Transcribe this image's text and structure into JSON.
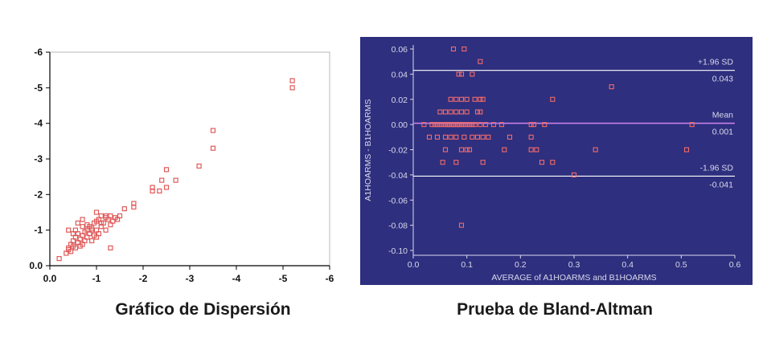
{
  "colors": {
    "left_marker": "#e05a5a",
    "left_axis": "#000000",
    "right_background": "#2e2f7e",
    "right_marker": "#f26a6a",
    "right_line": "#ffffff",
    "right_mean_line": "#c47fe8",
    "right_text": "#d8d8ec"
  },
  "captions": {
    "left": "Gráfico de Dispersión",
    "right": "Prueba de Bland-Altman"
  },
  "chart_data": [
    {
      "type": "scatter",
      "title": "",
      "xlabel": "",
      "ylabel": "",
      "xlim": [
        0,
        -6
      ],
      "ylim": [
        0,
        -6
      ],
      "grid": false,
      "x_ticks": [
        "0.0",
        "-1",
        "-2",
        "-3",
        "-4",
        "-5",
        "-6"
      ],
      "y_ticks": [
        "0.0",
        "-1",
        "-2",
        "-3",
        "-4",
        "-5",
        "-6"
      ],
      "x": [
        -0.2,
        -0.35,
        -0.4,
        -0.4,
        -0.45,
        -0.45,
        -0.5,
        -0.5,
        -0.55,
        -0.55,
        -0.6,
        -0.6,
        -0.6,
        -0.65,
        -0.65,
        -0.7,
        -0.7,
        -0.7,
        -0.75,
        -0.75,
        -0.8,
        -0.8,
        -0.85,
        -0.85,
        -0.9,
        -0.9,
        -0.95,
        -0.95,
        -1.0,
        -1.0,
        -1.0,
        -1.05,
        -1.05,
        -1.1,
        -1.1,
        -1.15,
        -1.2,
        -1.2,
        -1.25,
        -1.3,
        -1.3,
        -1.35,
        -1.4,
        -1.45,
        -1.5,
        -1.6,
        -1.8,
        -1.8,
        -2.2,
        -2.2,
        -2.35,
        -2.4,
        -2.5,
        -2.5,
        -2.7,
        -3.2,
        -3.5,
        -3.5,
        -5.2,
        -5.2,
        -0.4,
        -0.5,
        -0.55,
        -0.7,
        -0.8,
        -0.9,
        -1.0,
        -1.1,
        -1.2,
        -1.3
      ],
      "y": [
        -0.2,
        -0.35,
        -0.5,
        -1.0,
        -0.6,
        -0.4,
        -0.7,
        -0.55,
        -0.8,
        -0.5,
        -0.9,
        -0.65,
        -1.2,
        -0.75,
        -0.55,
        -0.6,
        -0.85,
        -1.1,
        -0.7,
        -0.95,
        -0.8,
        -1.0,
        -0.9,
        -1.1,
        -0.7,
        -1.0,
        -0.85,
        -1.2,
        -1.0,
        -0.8,
        -1.5,
        -0.9,
        -1.3,
        -1.1,
        -1.4,
        -1.2,
        -1.0,
        -1.35,
        -1.3,
        -0.5,
        -1.4,
        -1.25,
        -1.35,
        -1.3,
        -1.4,
        -1.6,
        -1.65,
        -1.75,
        -2.1,
        -2.2,
        -2.1,
        -2.4,
        -2.2,
        -2.7,
        -2.4,
        -2.8,
        -3.3,
        -3.8,
        -5.0,
        -5.2,
        -0.45,
        -0.9,
        -1.0,
        -1.3,
        -1.15,
        -1.05,
        -1.25,
        -1.2,
        -1.4,
        -1.15
      ]
    },
    {
      "type": "scatter",
      "title": "",
      "xlabel": "AVERAGE of A1HOARMS and B1HOARMS",
      "ylabel": "A1HOARMS - B1HOARMS",
      "xlim": [
        0.0,
        0.6
      ],
      "ylim": [
        -0.1,
        0.06
      ],
      "grid": false,
      "x_ticks": [
        "0.0",
        "0.1",
        "0.2",
        "0.3",
        "0.4",
        "0.5",
        "0.6"
      ],
      "y_ticks": [
        "0.06",
        "0.04",
        "0.02",
        "0.00",
        "-0.02",
        "-0.04",
        "-0.06",
        "-0.08",
        "-0.10"
      ],
      "reference_lines": [
        {
          "label": "+1.96 SD",
          "value_label": "0.043",
          "y": 0.043
        },
        {
          "label": "Mean",
          "value_label": "0.001",
          "y": 0.001
        },
        {
          "label": "-1.96 SD",
          "value_label": "-0.041",
          "y": -0.041
        }
      ],
      "x": [
        0.075,
        0.095,
        0.085,
        0.09,
        0.11,
        0.125,
        0.07,
        0.08,
        0.09,
        0.1,
        0.115,
        0.125,
        0.13,
        0.26,
        0.37,
        0.05,
        0.06,
        0.07,
        0.08,
        0.09,
        0.1,
        0.12,
        0.125,
        0.04,
        0.05,
        0.06,
        0.065,
        0.07,
        0.075,
        0.08,
        0.085,
        0.09,
        0.1,
        0.11,
        0.02,
        0.035,
        0.045,
        0.055,
        0.065,
        0.075,
        0.085,
        0.095,
        0.105,
        0.115,
        0.125,
        0.135,
        0.15,
        0.165,
        0.22,
        0.225,
        0.245,
        0.52,
        0.03,
        0.045,
        0.06,
        0.07,
        0.08,
        0.095,
        0.11,
        0.12,
        0.13,
        0.14,
        0.18,
        0.22,
        0.06,
        0.09,
        0.1,
        0.105,
        0.17,
        0.22,
        0.23,
        0.34,
        0.51,
        0.055,
        0.08,
        0.13,
        0.24,
        0.26,
        0.3,
        0.09
      ],
      "y": [
        0.06,
        0.06,
        0.04,
        0.04,
        0.04,
        0.05,
        0.02,
        0.02,
        0.02,
        0.02,
        0.02,
        0.02,
        0.02,
        0.02,
        0.03,
        0.01,
        0.01,
        0.01,
        0.01,
        0.01,
        0.01,
        0.01,
        0.01,
        0.0,
        0.0,
        0.0,
        0.0,
        0.0,
        0.0,
        0.0,
        0.0,
        0.0,
        0.0,
        0.0,
        0.0,
        0.0,
        0.0,
        0.0,
        0.0,
        0.0,
        0.0,
        0.0,
        0.0,
        0.0,
        0.0,
        0.0,
        0.0,
        0.0,
        0.0,
        0.0,
        0.0,
        0.0,
        -0.01,
        -0.01,
        -0.01,
        -0.01,
        -0.01,
        -0.01,
        -0.01,
        -0.01,
        -0.01,
        -0.01,
        -0.01,
        -0.01,
        -0.02,
        -0.02,
        -0.02,
        -0.02,
        -0.02,
        -0.02,
        -0.02,
        -0.02,
        -0.02,
        -0.03,
        -0.03,
        -0.03,
        -0.03,
        -0.03,
        -0.04,
        -0.08
      ]
    }
  ]
}
